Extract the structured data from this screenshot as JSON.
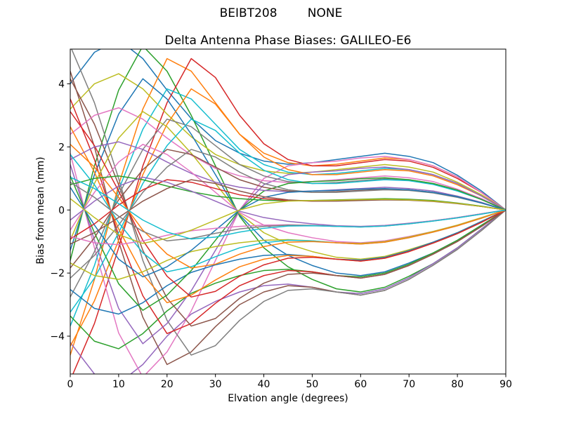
{
  "figure": {
    "suptitle": "BEIBT208        NONE",
    "background": "#ffffff",
    "frame_color": "#000000",
    "text_color": "#000000"
  },
  "chart_data": {
    "type": "line",
    "title": "Delta Antenna Phase Biases: GALILEO-E6",
    "suptitle": "BEIBT208        NONE",
    "xlabel": "Elvation angle (degrees)",
    "ylabel": "Bias from mean (mm)",
    "xlim": [
      0,
      90
    ],
    "ylim": [
      -5.2,
      5.1
    ],
    "xticks": [
      0,
      10,
      20,
      30,
      40,
      50,
      60,
      70,
      80,
      90
    ],
    "yticks": [
      -4,
      -2,
      0,
      2,
      4
    ],
    "grid": false,
    "legend_position": "none",
    "line_width": 1.5,
    "palette": [
      "#1f77b4",
      "#ff7f0e",
      "#2ca02c",
      "#d62728",
      "#9467bd",
      "#8c564b",
      "#e377c2",
      "#7f7f7f",
      "#bcbd22",
      "#17becf"
    ],
    "x": [
      0,
      5,
      10,
      15,
      20,
      25,
      30,
      35,
      40,
      45,
      50,
      55,
      60,
      65,
      70,
      75,
      80,
      85,
      90
    ],
    "series": [
      {
        "values": [
          4.0,
          5.0,
          5.4,
          4.8,
          3.8,
          2.9,
          2.2,
          1.8,
          1.55,
          1.45,
          1.5,
          1.6,
          1.7,
          1.8,
          1.7,
          1.5,
          1.1,
          0.6,
          0
        ]
      },
      {
        "values": [
          -4.6,
          -2.2,
          0.8,
          3.2,
          4.8,
          4.4,
          3.4,
          2.4,
          1.8,
          1.5,
          1.4,
          1.45,
          1.55,
          1.65,
          1.6,
          1.4,
          1.05,
          0.55,
          0
        ]
      },
      {
        "values": [
          -1.6,
          1.4,
          3.8,
          5.2,
          4.4,
          3.0,
          1.4,
          -0.2,
          -1.2,
          -1.8,
          -2.2,
          -2.5,
          -2.6,
          -2.45,
          -2.1,
          -1.7,
          -1.2,
          -0.6,
          0
        ]
      },
      {
        "values": [
          -5.4,
          -3.6,
          -1.2,
          1.4,
          3.4,
          4.8,
          4.2,
          3.0,
          2.1,
          1.6,
          1.4,
          1.4,
          1.5,
          1.6,
          1.55,
          1.35,
          1.0,
          0.55,
          0
        ]
      },
      {
        "values": [
          -4.2,
          -5.2,
          -5.5,
          -4.9,
          -4.0,
          -3.3,
          -2.9,
          -2.6,
          -2.4,
          -2.35,
          -2.45,
          -2.6,
          -2.65,
          -2.5,
          -2.15,
          -1.7,
          -1.2,
          -0.6,
          0
        ]
      },
      {
        "values": [
          4.4,
          2.0,
          -1.0,
          -3.4,
          -4.9,
          -4.5,
          -3.7,
          -3.0,
          -2.6,
          -2.4,
          -2.45,
          -2.6,
          -2.7,
          -2.55,
          -2.2,
          -1.75,
          -1.25,
          -0.65,
          0
        ]
      },
      {
        "values": [
          1.8,
          -1.2,
          -3.9,
          -5.3,
          -4.5,
          -3.2,
          -1.6,
          0.0,
          1.0,
          1.4,
          1.5,
          1.55,
          1.65,
          1.7,
          1.6,
          1.4,
          1.05,
          0.55,
          0
        ]
      },
      {
        "values": [
          5.2,
          3.4,
          1.0,
          -1.6,
          -3.5,
          -4.6,
          -4.3,
          -3.5,
          -2.9,
          -2.55,
          -2.5,
          -2.6,
          -2.7,
          -2.55,
          -2.2,
          -1.75,
          -1.25,
          -0.65,
          0
        ]
      },
      {
        "values": [
          3.2,
          4.0,
          4.32,
          3.84,
          3.04,
          2.32,
          1.76,
          1.44,
          1.24,
          1.16,
          1.2,
          1.28,
          1.36,
          1.44,
          1.36,
          1.2,
          0.88,
          0.48,
          0
        ]
      },
      {
        "values": [
          -3.68,
          -1.76,
          0.64,
          2.56,
          3.84,
          3.52,
          2.72,
          1.92,
          1.44,
          1.2,
          1.12,
          1.16,
          1.24,
          1.32,
          1.28,
          1.12,
          0.84,
          0.44,
          0
        ]
      },
      {
        "values": [
          -1.28,
          1.12,
          3.04,
          4.16,
          3.52,
          2.4,
          1.12,
          -0.16,
          -0.96,
          -1.44,
          -1.76,
          -2.0,
          -2.08,
          -1.96,
          -1.68,
          -1.36,
          -0.96,
          -0.48,
          0
        ]
      },
      {
        "values": [
          -4.32,
          -2.88,
          -0.96,
          1.12,
          2.72,
          3.84,
          3.36,
          2.4,
          1.68,
          1.28,
          1.12,
          1.12,
          1.2,
          1.28,
          1.24,
          1.08,
          0.8,
          0.44,
          0
        ]
      },
      {
        "values": [
          -3.36,
          -4.16,
          -4.4,
          -3.92,
          -3.2,
          -2.64,
          -2.32,
          -2.08,
          -1.92,
          -1.88,
          -1.96,
          -2.08,
          -2.12,
          -2.0,
          -1.72,
          -1.36,
          -0.96,
          -0.48,
          0
        ]
      },
      {
        "values": [
          3.52,
          1.6,
          -0.8,
          -2.72,
          -3.92,
          -3.6,
          -2.96,
          -2.4,
          -2.08,
          -1.92,
          -1.96,
          -2.08,
          -2.16,
          -2.04,
          -1.76,
          -1.4,
          -1.0,
          -0.52,
          0
        ]
      },
      {
        "values": [
          1.44,
          -0.96,
          -3.12,
          -4.24,
          -3.6,
          -2.56,
          -1.28,
          0.0,
          0.8,
          1.12,
          1.2,
          1.24,
          1.32,
          1.36,
          1.28,
          1.12,
          0.84,
          0.44,
          0
        ]
      },
      {
        "values": [
          4.16,
          2.72,
          0.8,
          -1.28,
          -2.8,
          -3.68,
          -3.44,
          -2.8,
          -2.32,
          -2.04,
          -2.0,
          -2.08,
          -2.16,
          -2.04,
          -1.76,
          -1.4,
          -1.0,
          -0.52,
          0
        ]
      },
      {
        "values": [
          2.4,
          3.0,
          3.24,
          2.88,
          2.28,
          1.74,
          1.32,
          1.08,
          0.93,
          0.87,
          0.9,
          0.96,
          1.02,
          1.08,
          1.02,
          0.9,
          0.66,
          0.36,
          0
        ]
      },
      {
        "values": [
          -2.76,
          -1.32,
          0.48,
          1.92,
          2.88,
          2.64,
          2.04,
          1.44,
          1.08,
          0.9,
          0.84,
          0.87,
          0.93,
          0.99,
          0.96,
          0.84,
          0.63,
          0.33,
          0
        ]
      },
      {
        "values": [
          -0.96,
          0.84,
          2.28,
          3.12,
          2.64,
          1.8,
          0.84,
          -0.12,
          -0.72,
          -1.08,
          -1.32,
          -1.5,
          -1.56,
          -1.47,
          -1.26,
          -1.02,
          -0.72,
          -0.36,
          0
        ]
      },
      {
        "values": [
          -3.24,
          -2.16,
          -0.72,
          0.84,
          2.04,
          2.88,
          2.52,
          1.8,
          1.26,
          0.96,
          0.84,
          0.84,
          0.9,
          0.96,
          0.93,
          0.81,
          0.6,
          0.33,
          0
        ]
      },
      {
        "values": [
          -2.52,
          -3.12,
          -3.3,
          -2.94,
          -2.4,
          -1.98,
          -1.74,
          -1.56,
          -1.44,
          -1.41,
          -1.47,
          -1.56,
          -1.59,
          -1.5,
          -1.29,
          -1.02,
          -0.72,
          -0.36,
          0
        ]
      },
      {
        "values": [
          2.64,
          1.2,
          -0.6,
          -2.04,
          -2.94,
          -2.7,
          -2.22,
          -1.8,
          -1.56,
          -1.44,
          -1.47,
          -1.56,
          -1.62,
          -1.53,
          -1.32,
          -1.05,
          -0.75,
          -0.39,
          0
        ]
      },
      {
        "values": [
          1.08,
          -0.72,
          -2.34,
          -3.18,
          -2.7,
          -1.92,
          -0.96,
          0.0,
          0.6,
          0.84,
          0.9,
          0.93,
          0.99,
          1.02,
          0.96,
          0.84,
          0.63,
          0.33,
          0
        ]
      },
      {
        "values": [
          3.12,
          2.04,
          0.6,
          -0.96,
          -2.1,
          -2.76,
          -2.58,
          -2.1,
          -1.74,
          -1.53,
          -1.5,
          -1.56,
          -1.62,
          -1.53,
          -1.32,
          -1.05,
          -0.75,
          -0.39,
          0
        ]
      },
      {
        "values": [
          1.6,
          2.0,
          2.16,
          1.92,
          1.52,
          1.16,
          0.88,
          0.72,
          0.62,
          0.58,
          0.6,
          0.64,
          0.68,
          0.72,
          0.68,
          0.6,
          0.44,
          0.24,
          0
        ]
      },
      {
        "values": [
          -1.84,
          -0.88,
          0.32,
          1.28,
          1.92,
          1.76,
          1.36,
          0.96,
          0.72,
          0.6,
          0.56,
          0.58,
          0.62,
          0.66,
          0.64,
          0.56,
          0.42,
          0.22,
          0
        ]
      },
      {
        "values": [
          -0.64,
          0.56,
          1.52,
          2.08,
          1.76,
          1.2,
          0.56,
          -0.08,
          -0.48,
          -0.72,
          -0.88,
          -1.0,
          -1.04,
          -0.98,
          -0.84,
          -0.68,
          -0.48,
          -0.24,
          0
        ]
      },
      {
        "values": [
          -2.16,
          -1.44,
          -0.48,
          0.56,
          1.36,
          1.92,
          1.68,
          1.2,
          0.84,
          0.64,
          0.56,
          0.56,
          0.6,
          0.64,
          0.62,
          0.54,
          0.4,
          0.22,
          0
        ]
      },
      {
        "values": [
          -1.68,
          -2.08,
          -2.2,
          -1.96,
          -1.6,
          -1.32,
          -1.16,
          -1.04,
          -0.96,
          -0.94,
          -0.98,
          -1.04,
          -1.06,
          -1.0,
          -0.86,
          -0.68,
          -0.48,
          -0.24,
          0
        ]
      },
      {
        "values": [
          1.76,
          0.8,
          -0.4,
          -1.36,
          -1.96,
          -1.8,
          -1.48,
          -1.2,
          -1.04,
          -0.96,
          -0.98,
          -1.04,
          -1.08,
          -1.02,
          -0.88,
          -0.7,
          -0.5,
          -0.26,
          0
        ]
      },
      {
        "values": [
          0.72,
          -0.48,
          -1.56,
          -2.12,
          -1.8,
          -1.28,
          -0.64,
          0.0,
          0.4,
          0.56,
          0.6,
          0.62,
          0.66,
          0.68,
          0.64,
          0.56,
          0.42,
          0.22,
          0
        ]
      },
      {
        "values": [
          2.08,
          1.36,
          0.4,
          -0.64,
          -1.4,
          -1.84,
          -1.72,
          -1.4,
          -1.16,
          -1.02,
          -1.0,
          -1.04,
          -1.08,
          -1.02,
          -0.88,
          -0.7,
          -0.5,
          -0.26,
          0
        ]
      },
      {
        "values": [
          0.8,
          1.0,
          1.08,
          0.96,
          0.76,
          0.58,
          0.44,
          0.36,
          0.31,
          0.29,
          0.3,
          0.32,
          0.34,
          0.36,
          0.34,
          0.3,
          0.22,
          0.12,
          0
        ]
      },
      {
        "values": [
          -0.92,
          -0.44,
          0.16,
          0.64,
          0.96,
          0.88,
          0.68,
          0.48,
          0.36,
          0.3,
          0.28,
          0.29,
          0.31,
          0.33,
          0.32,
          0.28,
          0.21,
          0.11,
          0
        ]
      },
      {
        "values": [
          -0.32,
          0.28,
          0.76,
          1.04,
          0.88,
          0.6,
          0.28,
          -0.04,
          -0.24,
          -0.36,
          -0.44,
          -0.5,
          -0.52,
          -0.49,
          -0.42,
          -0.34,
          -0.24,
          -0.12,
          0
        ]
      },
      {
        "values": [
          -1.08,
          -0.72,
          -0.24,
          0.28,
          0.68,
          0.96,
          0.84,
          0.6,
          0.42,
          0.32,
          0.28,
          0.28,
          0.3,
          0.32,
          0.31,
          0.27,
          0.2,
          0.11,
          0
        ]
      },
      {
        "values": [
          -0.84,
          -1.04,
          -1.1,
          -0.98,
          -0.8,
          -0.66,
          -0.58,
          -0.52,
          -0.48,
          -0.47,
          -0.49,
          -0.52,
          -0.53,
          -0.5,
          -0.43,
          -0.34,
          -0.24,
          -0.12,
          0
        ]
      },
      {
        "values": [
          0.88,
          0.4,
          -0.2,
          -0.68,
          -0.98,
          -0.9,
          -0.74,
          -0.6,
          -0.52,
          -0.48,
          -0.49,
          -0.52,
          -0.54,
          -0.51,
          -0.44,
          -0.35,
          -0.25,
          -0.13,
          0
        ]
      },
      {
        "values": [
          0.36,
          -0.24,
          -0.78,
          -1.06,
          -0.9,
          -0.64,
          -0.32,
          0.0,
          0.2,
          0.28,
          0.3,
          0.31,
          0.33,
          0.34,
          0.32,
          0.28,
          0.21,
          0.11,
          0
        ]
      },
      {
        "values": [
          1.04,
          0.68,
          0.2,
          -0.32,
          -0.7,
          -0.92,
          -0.86,
          -0.7,
          -0.58,
          -0.51,
          -0.5,
          -0.52,
          -0.54,
          -0.51,
          -0.44,
          -0.35,
          -0.25,
          -0.13,
          0
        ]
      }
    ]
  }
}
